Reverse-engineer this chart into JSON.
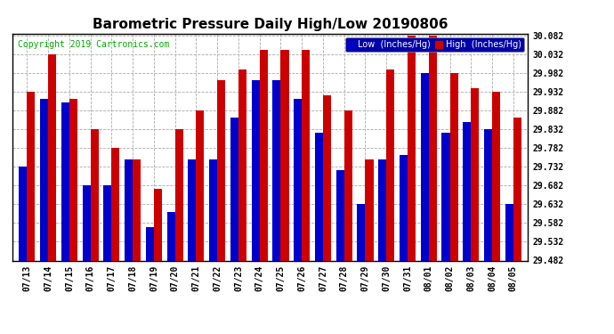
{
  "title": "Barometric Pressure Daily High/Low 20190806",
  "copyright": "Copyright 2019 Cartronics.com",
  "legend_low": "Low  (Inches/Hg)",
  "legend_high": "High  (Inches/Hg)",
  "dates": [
    "07/13",
    "07/14",
    "07/15",
    "07/16",
    "07/17",
    "07/18",
    "07/19",
    "07/20",
    "07/21",
    "07/22",
    "07/23",
    "07/24",
    "07/25",
    "07/26",
    "07/27",
    "07/28",
    "07/29",
    "07/30",
    "07/31",
    "08/01",
    "08/02",
    "08/03",
    "08/04",
    "08/05"
  ],
  "low_values": [
    29.732,
    29.912,
    29.902,
    29.682,
    29.682,
    29.752,
    29.572,
    29.612,
    29.752,
    29.752,
    29.862,
    29.962,
    29.962,
    29.912,
    29.822,
    29.722,
    29.632,
    29.752,
    29.762,
    29.982,
    29.822,
    29.852,
    29.832,
    29.632
  ],
  "high_values": [
    29.932,
    30.032,
    29.912,
    29.832,
    29.782,
    29.752,
    29.672,
    29.832,
    29.882,
    29.962,
    29.992,
    30.042,
    30.042,
    30.042,
    29.922,
    29.882,
    29.752,
    29.992,
    30.082,
    30.082,
    29.982,
    29.942,
    29.932,
    29.862
  ],
  "low_color": "#0000cc",
  "high_color": "#cc0000",
  "bg_color": "#ffffff",
  "grid_color": "#aaaaaa",
  "ylim_min": 29.482,
  "ylim_max": 30.082,
  "ytick_step": 0.05,
  "bar_width": 0.38,
  "title_fontsize": 11,
  "tick_fontsize": 7,
  "copyright_fontsize": 7,
  "legend_fontsize": 7,
  "legend_bg": "#0000aa",
  "copyright_color": "#00aa00"
}
